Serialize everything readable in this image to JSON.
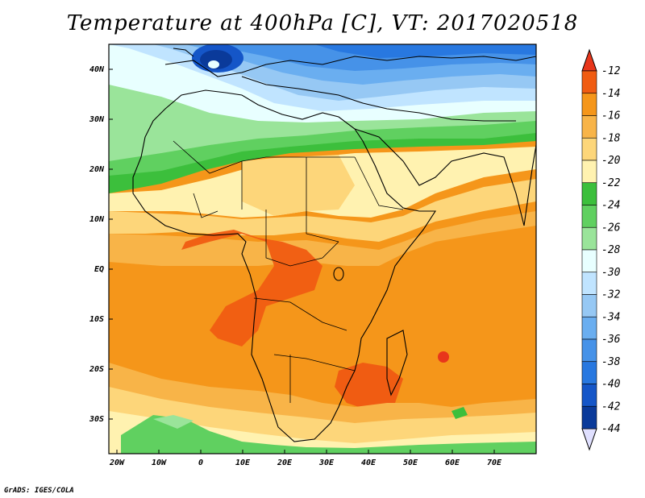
{
  "title": "Temperature at 400hPa [C], VT: 2017020518",
  "credit": "GrADS: IGES/COLA",
  "x_ticks": [
    "20W",
    "10W",
    "0",
    "10E",
    "20E",
    "30E",
    "40E",
    "50E",
    "60E",
    "70E"
  ],
  "y_ticks": [
    "40N",
    "30N",
    "20N",
    "10N",
    "EQ",
    "10S",
    "20S",
    "30S"
  ],
  "colorbar": {
    "labels": [
      "-12",
      "-14",
      "-16",
      "-18",
      "-20",
      "-22",
      "-24",
      "-26",
      "-28",
      "-30",
      "-32",
      "-34",
      "-36",
      "-38",
      "-40",
      "-42",
      "-44"
    ],
    "colors": {
      "above_max": "#e8361b",
      "below_min": "#e0e0ff",
      "bins": [
        "#f05c12",
        "#f5961a",
        "#f8b448",
        "#fdd67a",
        "#fff2b0",
        "#3cbf3c",
        "#60d060",
        "#9ae49a",
        "#e8ffff",
        "#c0e4ff",
        "#96c8f4",
        "#6aaef0",
        "#4692e8",
        "#2878e0",
        "#1556c8",
        "#0a3a9a"
      ]
    }
  }
}
